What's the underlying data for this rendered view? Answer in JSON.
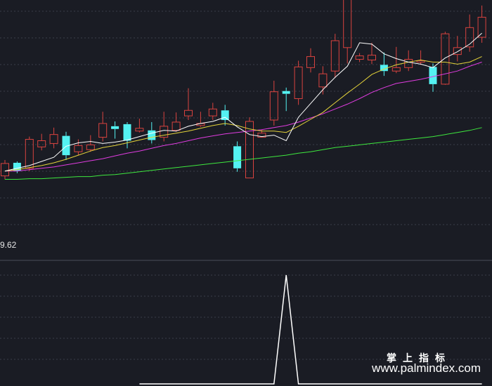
{
  "chart_data": {
    "type": "candlestick",
    "grid": true,
    "colors": {
      "background": "#1a1c24",
      "grid": "#3a3e4a",
      "up": "#d9433f",
      "down": "#54f2f2",
      "ma5": "#ffffff",
      "ma10": "#e5d43a",
      "ma20": "#e03ce0",
      "ma60": "#3ee83e",
      "indicator": "#ffffff",
      "divider": "#4a4e5a"
    },
    "main_ylim": [
      8.7,
      12.2
    ],
    "candles": [
      {
        "o": 9.65,
        "c": 9.83,
        "h": 9.88,
        "l": 9.6
      },
      {
        "o": 9.84,
        "c": 9.72,
        "h": 9.86,
        "l": 9.69
      },
      {
        "o": 9.76,
        "c": 10.18,
        "h": 10.22,
        "l": 9.72
      },
      {
        "o": 10.07,
        "c": 10.16,
        "h": 10.26,
        "l": 10.02
      },
      {
        "o": 10.12,
        "c": 10.25,
        "h": 10.35,
        "l": 10.05
      },
      {
        "o": 10.23,
        "c": 9.95,
        "h": 10.29,
        "l": 9.88
      },
      {
        "o": 10.0,
        "c": 10.09,
        "h": 10.18,
        "l": 9.95
      },
      {
        "o": 10.03,
        "c": 10.1,
        "h": 10.24,
        "l": 10.0
      },
      {
        "o": 10.21,
        "c": 10.41,
        "h": 10.58,
        "l": 10.15
      },
      {
        "o": 10.37,
        "c": 10.33,
        "h": 10.44,
        "l": 10.19
      },
      {
        "o": 10.4,
        "c": 10.16,
        "h": 10.43,
        "l": 10.05
      },
      {
        "o": 10.3,
        "c": 10.34,
        "h": 10.48,
        "l": 10.28
      },
      {
        "o": 10.31,
        "c": 10.17,
        "h": 10.43,
        "l": 10.12
      },
      {
        "o": 10.21,
        "c": 10.37,
        "h": 10.58,
        "l": 10.15
      },
      {
        "o": 10.31,
        "c": 10.43,
        "h": 10.57,
        "l": 10.29
      },
      {
        "o": 10.52,
        "c": 10.6,
        "h": 10.92,
        "l": 10.46
      },
      {
        "o": 10.38,
        "c": 10.41,
        "h": 10.58,
        "l": 10.36
      },
      {
        "o": 10.52,
        "c": 10.62,
        "h": 10.71,
        "l": 10.46
      },
      {
        "o": 10.6,
        "c": 10.46,
        "h": 10.68,
        "l": 10.38
      },
      {
        "o": 10.08,
        "c": 9.76,
        "h": 10.15,
        "l": 9.71
      },
      {
        "o": 9.62,
        "c": 10.44,
        "h": 10.5,
        "l": 9.62
      },
      {
        "o": 10.21,
        "c": 10.27,
        "h": 10.32,
        "l": 10.21
      },
      {
        "o": 10.46,
        "c": 10.87,
        "h": 11.03,
        "l": 10.38
      },
      {
        "o": 10.88,
        "c": 10.84,
        "h": 10.93,
        "l": 10.59
      },
      {
        "o": 10.77,
        "c": 11.23,
        "h": 11.32,
        "l": 10.68
      },
      {
        "o": 11.22,
        "c": 11.38,
        "h": 11.5,
        "l": 11.15
      },
      {
        "o": 10.94,
        "c": 11.13,
        "h": 11.24,
        "l": 10.83
      },
      {
        "o": 11.17,
        "c": 11.61,
        "h": 11.71,
        "l": 11.07
      },
      {
        "o": 11.51,
        "c": 12.24,
        "h": 12.24,
        "l": 11.28
      },
      {
        "o": 11.34,
        "c": 11.39,
        "h": 11.43,
        "l": 11.3
      },
      {
        "o": 11.33,
        "c": 11.4,
        "h": 11.58,
        "l": 11.27
      },
      {
        "o": 11.26,
        "c": 11.17,
        "h": 11.44,
        "l": 11.1
      },
      {
        "o": 11.17,
        "c": 11.22,
        "h": 11.52,
        "l": 11.14
      },
      {
        "o": 11.22,
        "c": 11.34,
        "h": 11.47,
        "l": 11.17
      },
      {
        "o": 11.3,
        "c": 11.32,
        "h": 11.47,
        "l": 11.26
      },
      {
        "o": 11.23,
        "c": 10.98,
        "h": 11.28,
        "l": 10.87
      },
      {
        "o": 10.98,
        "c": 11.71,
        "h": 11.74,
        "l": 10.97
      },
      {
        "o": 11.41,
        "c": 11.51,
        "h": 11.68,
        "l": 11.31
      },
      {
        "o": 11.52,
        "c": 11.8,
        "h": 11.99,
        "l": 11.45
      },
      {
        "o": 11.66,
        "c": 11.95,
        "h": 12.12,
        "l": 11.58
      }
    ],
    "ma5": [
      9.72,
      9.76,
      9.8,
      9.86,
      9.92,
      10.08,
      10.13,
      10.15,
      10.12,
      10.14,
      10.17,
      10.22,
      10.27,
      10.31,
      10.3,
      10.37,
      10.41,
      10.44,
      10.5,
      10.36,
      10.25,
      10.22,
      10.24,
      10.16,
      10.5,
      10.7,
      10.9,
      11.08,
      11.24,
      11.58,
      11.56,
      11.42,
      11.35,
      11.3,
      11.27,
      11.22,
      11.36,
      11.45,
      11.56,
      11.72
    ],
    "ma10": [
      9.72,
      9.74,
      9.77,
      9.8,
      9.84,
      9.89,
      9.95,
      10.01,
      10.06,
      10.09,
      10.13,
      10.17,
      10.21,
      10.24,
      10.27,
      10.3,
      10.34,
      10.38,
      10.41,
      10.38,
      10.33,
      10.3,
      10.3,
      10.28,
      10.37,
      10.47,
      10.57,
      10.71,
      10.85,
      10.98,
      11.12,
      11.2,
      11.26,
      11.3,
      11.33,
      11.3,
      11.3,
      11.27,
      11.3,
      11.38
    ],
    "ma20": [
      9.72,
      9.72,
      9.74,
      9.76,
      9.78,
      9.81,
      9.84,
      9.87,
      9.9,
      9.94,
      9.98,
      10.01,
      10.05,
      10.09,
      10.12,
      10.16,
      10.2,
      10.23,
      10.26,
      10.28,
      10.3,
      10.32,
      10.35,
      10.38,
      10.43,
      10.49,
      10.55,
      10.62,
      10.69,
      10.77,
      10.86,
      10.93,
      10.99,
      11.02,
      11.05,
      11.09,
      11.13,
      11.17,
      11.24,
      11.3
    ],
    "ma60": [
      9.6,
      9.6,
      9.61,
      9.61,
      9.62,
      9.63,
      9.64,
      9.64,
      9.66,
      9.67,
      9.69,
      9.71,
      9.73,
      9.75,
      9.77,
      9.79,
      9.81,
      9.83,
      9.85,
      9.87,
      9.89,
      9.91,
      9.93,
      9.95,
      9.98,
      10.0,
      10.03,
      10.06,
      10.08,
      10.1,
      10.12,
      10.14,
      10.16,
      10.18,
      10.2,
      10.22,
      10.25,
      10.28,
      10.31,
      10.35
    ],
    "low_label": "9.62",
    "indicator": {
      "ylim": [
        0,
        1
      ],
      "values": [
        0,
        0,
        0,
        0,
        0,
        0,
        0,
        0,
        0,
        0,
        0,
        0,
        0,
        0,
        0,
        0,
        0,
        0,
        0,
        0,
        0,
        0,
        0,
        1,
        0,
        0,
        0,
        0,
        0,
        0,
        0,
        0,
        0,
        0,
        0,
        0,
        0,
        0,
        0,
        0
      ]
    }
  },
  "watermark": {
    "title": "掌上指标",
    "url": "www.palmindex.com"
  }
}
